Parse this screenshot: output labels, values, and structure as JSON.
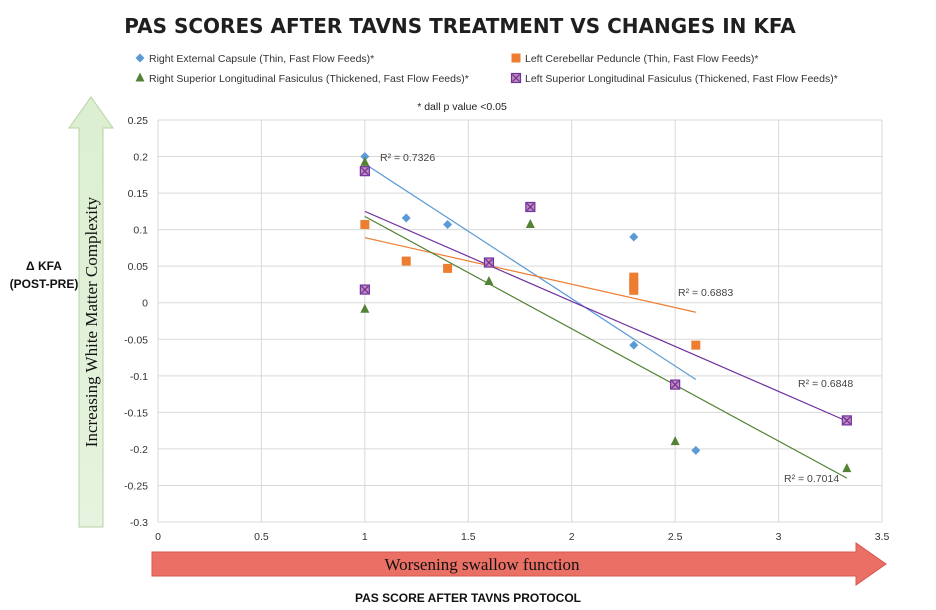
{
  "chart_data": {
    "type": "scatter",
    "title": "PAS SCORES AFTER TAVNS TREATMENT VS CHANGES IN KFA",
    "note": "* dall p value <0.05",
    "xlabel": "PAS SCORE AFTER TAVNS PROTOCOL",
    "ylabel_lines": [
      "Δ KFA",
      "(POST-PRE)"
    ],
    "x_arrow_label": "Worsening swallow function",
    "y_arrow_label": "Increasing White Matter Complexity",
    "xlim": [
      0,
      3.5
    ],
    "ylim": [
      -0.3,
      0.25
    ],
    "x_ticks": [
      0,
      0.5,
      1,
      1.5,
      2,
      2.5,
      3,
      3.5
    ],
    "x_tick_labels": [
      "0",
      "0.5",
      "1",
      "1.5",
      "2",
      "2.5",
      "3",
      "3.5"
    ],
    "y_ticks": [
      0.25,
      0.2,
      0.15,
      0.1,
      0.05,
      0,
      -0.05,
      -0.1,
      -0.15,
      -0.2,
      -0.25,
      -0.3
    ],
    "y_tick_labels": [
      "0.25",
      "0.2",
      "0.15",
      "0.1",
      "0.05",
      "0",
      "-0.05",
      "-0.1",
      "-0.15",
      "-0.2",
      "-0.25",
      "-0.3"
    ],
    "grid": true,
    "legend_position": "top",
    "series": [
      {
        "name": "Right External Capsule (Thin, Fast Flow Feeds)*",
        "marker": "diamond",
        "color": "#5b9bd5",
        "x": [
          1,
          1.2,
          1.4,
          1.6,
          2.3,
          2.3,
          2.5,
          2.6
        ],
        "y": [
          0.2,
          0.116,
          0.107,
          0.056,
          0.09,
          -0.058,
          -0.112,
          -0.202
        ],
        "trend": {
          "x0": 1,
          "y0": 0.19,
          "x1": 2.6,
          "y1": -0.105
        },
        "r2_label": "R² = 0.7326"
      },
      {
        "name": "Left Cerebellar Peduncle (Thin, Fast Flow Feeds)*",
        "marker": "square",
        "color": "#ed7d31",
        "x": [
          1,
          1.2,
          1.4,
          1.6,
          2.3,
          2.3,
          2.3,
          2.3,
          2.6
        ],
        "y": [
          0.107,
          0.057,
          0.047,
          0.055,
          0.035,
          0.028,
          0.022,
          0.017,
          -0.058
        ],
        "trend": {
          "x0": 1,
          "y0": 0.089,
          "x1": 2.6,
          "y1": -0.013
        },
        "r2_label": "R² = 0.6883"
      },
      {
        "name": "Right Superior Longitudinal Fasiculus (Thickened, Fast Flow Feeds)*",
        "marker": "triangle",
        "color": "#548235",
        "x": [
          1,
          1,
          1.6,
          1.8,
          2.5,
          3.33
        ],
        "y": [
          0.192,
          -0.009,
          0.029,
          0.107,
          -0.19,
          -0.227
        ],
        "trend": {
          "x0": 1,
          "y0": 0.118,
          "x1": 3.33,
          "y1": -0.24
        },
        "r2_label": "R² = 0.7014"
      },
      {
        "name": "Left Superior Longitudinal Fasiculus (Thickened, Fast Flow Feeds)*",
        "marker": "xsquare",
        "color": "#7030a0",
        "x": [
          1,
          1,
          1.6,
          1.8,
          2.5,
          3.33
        ],
        "y": [
          0.18,
          0.018,
          0.055,
          0.131,
          -0.112,
          -0.161
        ],
        "trend": {
          "x0": 1,
          "y0": 0.125,
          "x1": 3.33,
          "y1": -0.162
        },
        "r2_label": "R² = 0.6848"
      }
    ]
  }
}
